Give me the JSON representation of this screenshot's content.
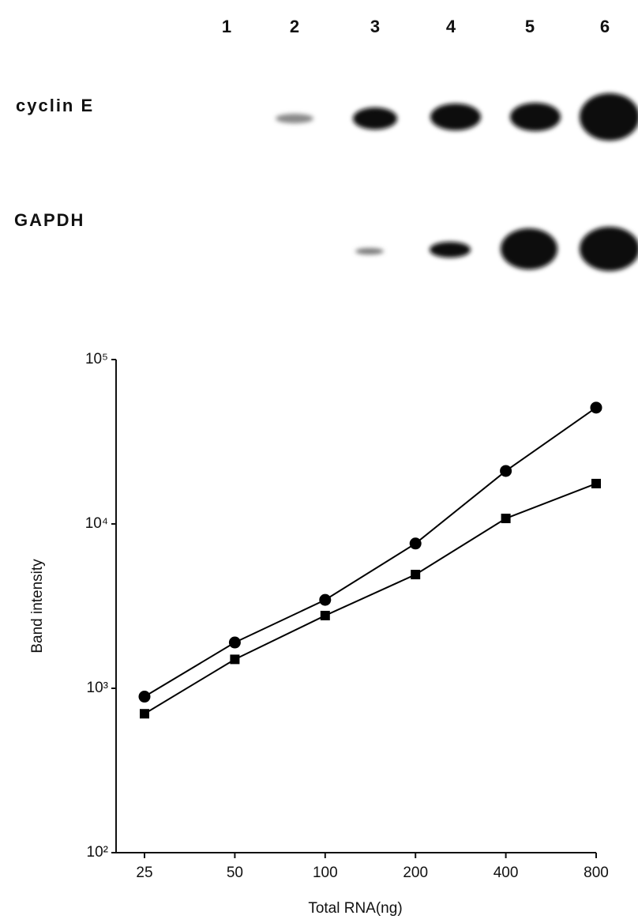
{
  "gel": {
    "lanes": [
      "1",
      "2",
      "3",
      "4",
      "5",
      "6"
    ],
    "rows": [
      "cyclin E",
      "GAPDH"
    ]
  },
  "chart_data": {
    "type": "line",
    "log_y": true,
    "x_label": "Total RNA(ng)",
    "y_label": "Band intensity",
    "categories": [
      "25",
      "50",
      "100",
      "200",
      "400",
      "800"
    ],
    "series": [
      {
        "color": "#000000",
        "marker": "circle",
        "values": [
          890,
          1900,
          3450,
          7600,
          21000,
          51000
        ]
      },
      {
        "color": "#000000",
        "marker": "square",
        "values": [
          700,
          1500,
          2770,
          4920,
          10800,
          17600
        ]
      }
    ],
    "ylim": [
      100,
      100000
    ],
    "yticks": [
      {
        "value": 100,
        "label": "10²"
      },
      {
        "value": 1000,
        "label": "10³"
      },
      {
        "value": 10000,
        "label": "10⁴"
      },
      {
        "value": 100000,
        "label": "10⁵"
      }
    ]
  }
}
